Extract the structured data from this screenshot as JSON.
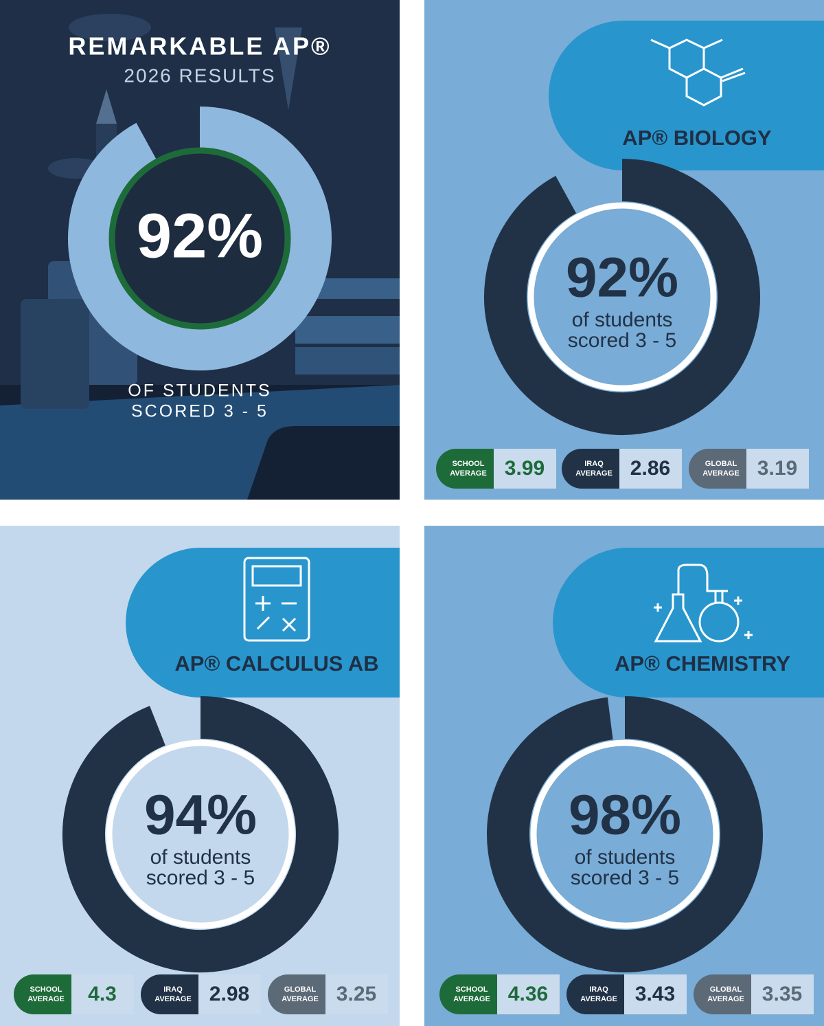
{
  "chart_data": [
    {
      "type": "donut",
      "title": "REMARKABLE AP®",
      "subtitle": "2026 RESULTS",
      "values": [
        92
      ],
      "value_labels": [
        "92%"
      ],
      "caption": [
        "OF STUDENTS",
        "SCORED 3 - 5"
      ]
    },
    {
      "type": "donut",
      "title": "AP® BIOLOGY",
      "values": [
        92
      ],
      "value_labels": [
        "92%"
      ],
      "caption": [
        "of students",
        "scored 3 - 5"
      ],
      "averages": [
        {
          "label": [
            "SCHOOL",
            "AVERAGE"
          ],
          "value": 3.99
        },
        {
          "label": [
            "IRAQ",
            "AVERAGE"
          ],
          "value": 2.86
        },
        {
          "label": [
            "GLOBAL",
            "AVERAGE"
          ],
          "value": 3.19
        }
      ]
    },
    {
      "type": "donut",
      "title": "AP® CALCULUS AB",
      "values": [
        94
      ],
      "value_labels": [
        "94%"
      ],
      "caption": [
        "of students",
        "scored 3 - 5"
      ],
      "averages": [
        {
          "label": [
            "SCHOOL",
            "AVERAGE"
          ],
          "value": 4.3
        },
        {
          "label": [
            "IRAQ",
            "AVERAGE"
          ],
          "value": 2.98
        },
        {
          "label": [
            "GLOBAL",
            "AVERAGE"
          ],
          "value": 3.25
        }
      ]
    },
    {
      "type": "donut",
      "title": "AP® CHEMISTRY",
      "values": [
        98
      ],
      "value_labels": [
        "98%"
      ],
      "caption": [
        "of students",
        "scored 3 - 5"
      ],
      "averages": [
        {
          "label": [
            "SCHOOL",
            "AVERAGE"
          ],
          "value": 4.36
        },
        {
          "label": [
            "IRAQ",
            "AVERAGE"
          ],
          "value": 3.43
        },
        {
          "label": [
            "GLOBAL",
            "AVERAGE"
          ],
          "value": 3.35
        }
      ]
    }
  ]
}
